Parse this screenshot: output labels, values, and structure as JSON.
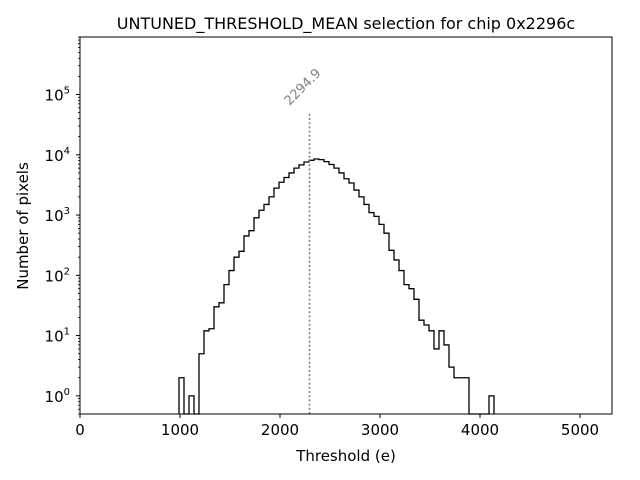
{
  "chart_data": {
    "type": "histogram",
    "title": "UNTUNED_THRESHOLD_MEAN selection for chip 0x2296c",
    "xlabel": "Threshold (e)",
    "ylabel": "Number of pixels",
    "xlim": [
      0,
      5320
    ],
    "ylog": true,
    "ylim": [
      0.5,
      900000
    ],
    "x_ticks": [
      0,
      1000,
      2000,
      3000,
      4000,
      5000
    ],
    "x_tick_labels": [
      "0",
      "1000",
      "2000",
      "3000",
      "4000",
      "5000"
    ],
    "y_ticks": [
      1,
      10,
      100,
      1000,
      10000,
      100000
    ],
    "y_tick_labels": [
      {
        "base": "10",
        "exp": "0"
      },
      {
        "base": "10",
        "exp": "1"
      },
      {
        "base": "10",
        "exp": "2"
      },
      {
        "base": "10",
        "exp": "3"
      },
      {
        "base": "10",
        "exp": "4"
      },
      {
        "base": "10",
        "exp": "5"
      }
    ],
    "grid": false,
    "histogram_color": "#000000",
    "bins_start": 990,
    "bin_width": 50,
    "counts": [
      2,
      0.5,
      1,
      0.5,
      5,
      12,
      13,
      30,
      35,
      70,
      120,
      200,
      250,
      450,
      550,
      900,
      1200,
      1500,
      2000,
      2800,
      3500,
      4200,
      5000,
      6000,
      6800,
      7600,
      8100,
      8500,
      8300,
      7700,
      6900,
      6000,
      5000,
      4000,
      3400,
      2600,
      2000,
      1500,
      1100,
      950,
      700,
      500,
      260,
      180,
      120,
      70,
      60,
      40,
      18,
      15,
      12,
      6,
      12,
      7,
      3,
      2,
      2,
      2,
      0.5,
      0.5,
      0.5,
      0.5,
      1
    ],
    "mean_marker": {
      "x": 2294.9,
      "label": "2294.9",
      "y_top": 50000,
      "color": "#808080",
      "style": "dotted"
    }
  }
}
